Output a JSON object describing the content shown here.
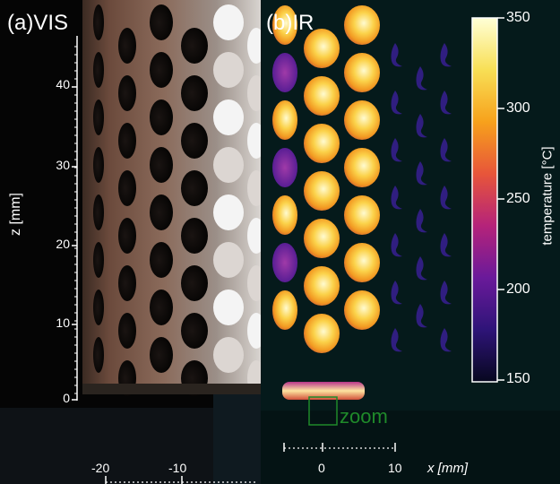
{
  "panels": {
    "vis": {
      "label": "(a)",
      "title": "VIS"
    },
    "ir": {
      "label": "(b)",
      "title": "IR"
    }
  },
  "z_axis": {
    "title": "z [mm]",
    "ticks": [
      "40",
      "30",
      "20",
      "10",
      "0"
    ]
  },
  "x_axis": {
    "title": "x [mm]",
    "ticks_ir": [
      "0",
      "10"
    ],
    "ticks_vis": [
      "-20",
      "-10"
    ]
  },
  "colorbar": {
    "title": "temperature [°C]",
    "ticks": [
      "350",
      "300",
      "250",
      "200",
      "150"
    ],
    "colors": [
      "#ffffd6",
      "#f8df55",
      "#f7a11c",
      "#e7553a",
      "#b5237a",
      "#6a1a9a",
      "#2e1478",
      "#07071f"
    ]
  },
  "zoom": {
    "label": "zoom",
    "color": "#1f8a2a"
  }
}
